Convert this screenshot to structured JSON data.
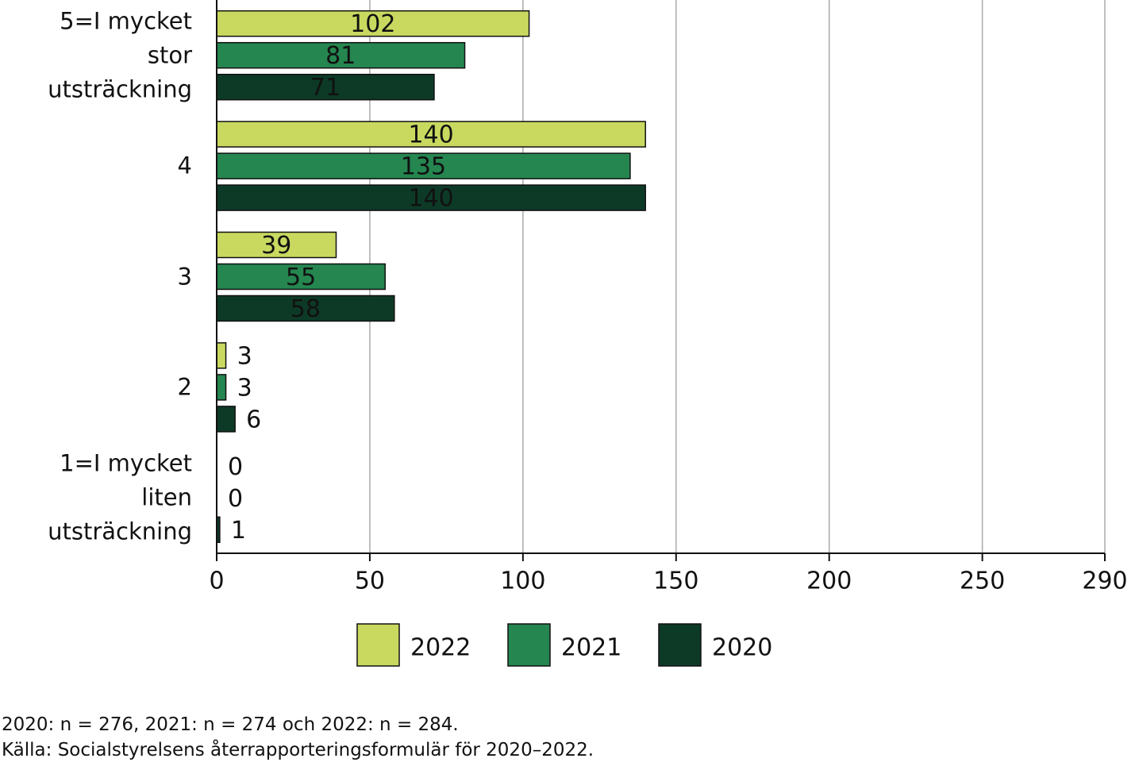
{
  "chart_data": {
    "type": "bar",
    "orientation": "horizontal",
    "categories": [
      "5=I mycket\nstor utsträckning",
      "4",
      "3",
      "2",
      "1=I mycket\nliten utsträckning"
    ],
    "series": [
      {
        "name": "2022",
        "color": "#c9d960",
        "values": [
          102,
          140,
          39,
          3,
          0
        ]
      },
      {
        "name": "2021",
        "color": "#258650",
        "values": [
          81,
          135,
          55,
          3,
          0
        ]
      },
      {
        "name": "2020",
        "color": "#0d3a27",
        "values": [
          71,
          140,
          58,
          6,
          1
        ]
      }
    ],
    "xlim": [
      0,
      290
    ],
    "xticks": [
      0,
      50,
      100,
      150,
      200,
      250,
      290
    ],
    "grid": true,
    "notes": [
      "2020: n = 276, 2021: n = 274 och 2022: n = 284.",
      "Källa: Socialstyrelsens återrapporteringsformulär för 2020–2022."
    ]
  }
}
